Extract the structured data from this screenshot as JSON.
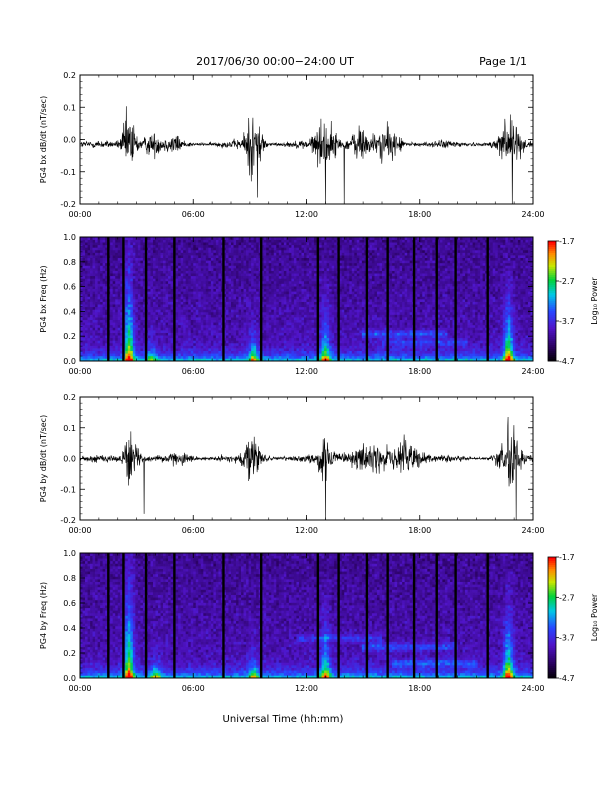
{
  "header": {
    "title": "2017/06/30  00:00−24:00 UT",
    "page": "Page 1/1"
  },
  "x_axis_label": "Universal Time (hh:mm)",
  "chart_data": [
    {
      "type": "line",
      "ylabel": "PG4 bx dB/dt (nT/sec)",
      "xlim": [
        0,
        24
      ],
      "ylim": [
        -0.2,
        0.2
      ],
      "x_ticks": [
        "00:00",
        "06:00",
        "12:00",
        "18:00",
        "24:00"
      ],
      "y_ticks": [
        "0.2",
        "0.1",
        "0.0",
        "-0.1",
        "-0.2"
      ],
      "baseline": -0.015,
      "bursts": [
        {
          "center": 2.6,
          "width": 0.35,
          "amp": 0.14
        },
        {
          "center": 3.8,
          "width": 0.5,
          "amp": 0.04
        },
        {
          "center": 5.0,
          "width": 0.4,
          "amp": 0.03
        },
        {
          "center": 9.2,
          "width": 0.45,
          "amp": 0.14
        },
        {
          "center": 13.0,
          "width": 0.6,
          "amp": 0.1
        },
        {
          "center": 14.8,
          "width": 0.5,
          "amp": 0.07
        },
        {
          "center": 16.3,
          "width": 0.7,
          "amp": 0.06
        },
        {
          "center": 22.7,
          "width": 0.5,
          "amp": 0.16
        }
      ],
      "spikes": [
        {
          "x": 9.4,
          "y": -0.18
        },
        {
          "x": 13.0,
          "y": -0.21
        },
        {
          "x": 14.0,
          "y": -0.2
        },
        {
          "x": 22.9,
          "y": -0.21
        }
      ]
    },
    {
      "type": "heatmap",
      "ylabel": "PG4 bx Freq (Hz)",
      "xlim": [
        0,
        24
      ],
      "ylim": [
        0.0,
        1.0
      ],
      "x_ticks": [
        "00:00",
        "06:00",
        "12:00",
        "18:00",
        "24:00"
      ],
      "y_ticks": [
        "1.0",
        "0.8",
        "0.6",
        "0.4",
        "0.2",
        "0.0"
      ],
      "colorbar": {
        "label": "Log₁₀ Power",
        "ticks": [
          "-1.7",
          "-2.7",
          "-3.7",
          "-4.7"
        ],
        "range": [
          -4.7,
          -1.7
        ]
      },
      "gaps": [
        1.5,
        2.3,
        3.5,
        5.0,
        7.6,
        9.6,
        12.6,
        13.7,
        15.2,
        16.3,
        17.7,
        18.9,
        19.9,
        21.6
      ],
      "bursts": [
        {
          "center": 2.6,
          "fmax": 0.9,
          "strength": 1.0
        },
        {
          "center": 3.8,
          "fmax": 0.2,
          "strength": 0.5
        },
        {
          "center": 9.2,
          "fmax": 0.3,
          "strength": 0.7
        },
        {
          "center": 13.0,
          "fmax": 0.5,
          "strength": 0.8
        },
        {
          "center": 22.7,
          "fmax": 0.6,
          "strength": 1.0
        }
      ],
      "bands": [
        {
          "start": 15.0,
          "end": 19.5,
          "freq": 0.22,
          "strength": 0.6
        },
        {
          "start": 16.0,
          "end": 20.5,
          "freq": 0.15,
          "strength": 0.45
        }
      ]
    },
    {
      "type": "line",
      "ylabel": "PG4 by dB/dt (nT/sec)",
      "xlim": [
        0,
        24
      ],
      "ylim": [
        -0.2,
        0.2
      ],
      "x_ticks": [
        "00:00",
        "06:00",
        "12:00",
        "18:00",
        "24:00"
      ],
      "y_ticks": [
        "0.2",
        "0.1",
        "0.0",
        "-0.1",
        "-0.2"
      ],
      "baseline": 0.0,
      "bursts": [
        {
          "center": 2.7,
          "width": 0.35,
          "amp": 0.14
        },
        {
          "center": 5.4,
          "width": 0.5,
          "amp": 0.02
        },
        {
          "center": 9.2,
          "width": 0.45,
          "amp": 0.09
        },
        {
          "center": 13.0,
          "width": 0.4,
          "amp": 0.1
        },
        {
          "center": 15.2,
          "width": 1.2,
          "amp": 0.05
        },
        {
          "center": 17.3,
          "width": 0.8,
          "amp": 0.08
        },
        {
          "center": 22.7,
          "width": 0.5,
          "amp": 0.16
        }
      ],
      "spikes": [
        {
          "x": 3.4,
          "y": -0.18
        },
        {
          "x": 13.0,
          "y": -0.2
        },
        {
          "x": 23.1,
          "y": -0.21
        }
      ]
    },
    {
      "type": "heatmap",
      "ylabel": "PG4 by Freq (Hz)",
      "xlim": [
        0,
        24
      ],
      "ylim": [
        0.0,
        1.0
      ],
      "x_ticks": [
        "00:00",
        "06:00",
        "12:00",
        "18:00",
        "24:00"
      ],
      "y_ticks": [
        "1.0",
        "0.8",
        "0.6",
        "0.4",
        "0.2",
        "0.0"
      ],
      "colorbar": {
        "label": "Log₁₀ Power",
        "ticks": [
          "-1.7",
          "-2.7",
          "-3.7",
          "-4.7"
        ],
        "range": [
          -4.7,
          -1.7
        ]
      },
      "gaps": [
        1.5,
        2.3,
        3.5,
        5.0,
        7.6,
        9.6,
        12.6,
        13.7,
        15.2,
        16.3,
        17.7,
        18.9,
        19.9,
        21.6
      ],
      "bursts": [
        {
          "center": 2.6,
          "fmax": 1.0,
          "strength": 1.0
        },
        {
          "center": 4.0,
          "fmax": 0.2,
          "strength": 0.6
        },
        {
          "center": 9.2,
          "fmax": 0.25,
          "strength": 0.6
        },
        {
          "center": 13.0,
          "fmax": 0.5,
          "strength": 0.8
        },
        {
          "center": 22.7,
          "fmax": 0.6,
          "strength": 1.0
        }
      ],
      "bands": [
        {
          "start": 11.5,
          "end": 16.0,
          "freq": 0.32,
          "strength": 0.45
        },
        {
          "start": 15.0,
          "end": 20.0,
          "freq": 0.25,
          "strength": 0.6
        },
        {
          "start": 16.5,
          "end": 21.0,
          "freq": 0.12,
          "strength": 0.55
        }
      ]
    }
  ]
}
